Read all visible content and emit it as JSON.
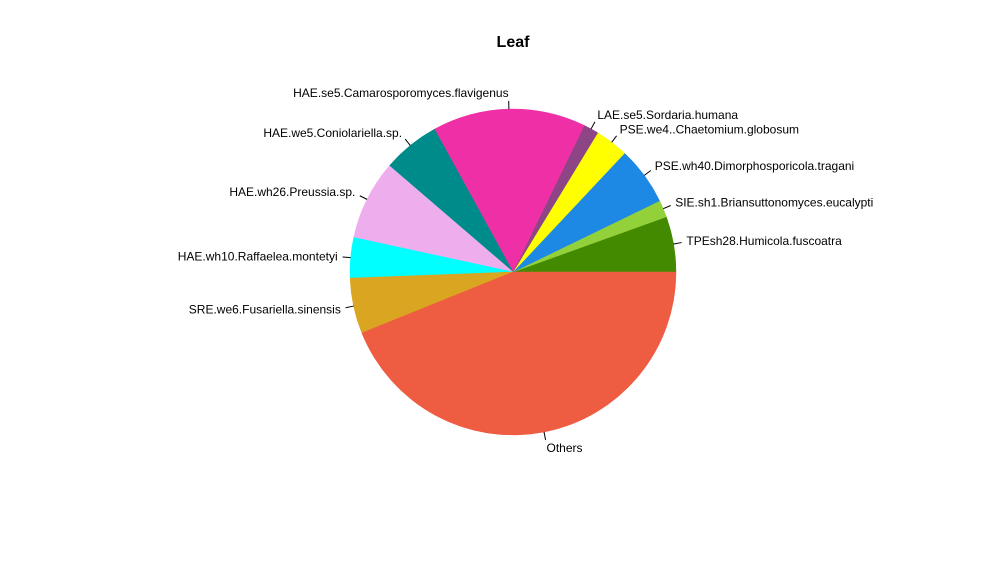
{
  "chart_data": {
    "type": "pie",
    "title": "Leaf",
    "start_angle_deg": 0,
    "direction": "counterclockwise",
    "slices": [
      {
        "label": "TPEsh28.Humicola.fuscoatra",
        "value": 5.5,
        "color": "#438A00"
      },
      {
        "label": "SIE.sh1.Briansuttonomyces.eucalypti",
        "value": 1.7,
        "color": "#93D13B"
      },
      {
        "label": "PSE.wh40.Dimorphosporicola.tragani",
        "value": 5.8,
        "color": "#1E88E5"
      },
      {
        "label": "PSE.we4..Chaetomium.globosum",
        "value": 3.3,
        "color": "#FFFF00"
      },
      {
        "label": "LAE.se5.Sordaria.humana",
        "value": 1.5,
        "color": "#8E4585"
      },
      {
        "label": "HAE.se5.Camarosporomyces.flavigenus",
        "value": 15.2,
        "color": "#EE2FA6"
      },
      {
        "label": "HAE.we5.Coniolariella.sp.",
        "value": 5.7,
        "color": "#008B8B"
      },
      {
        "label": "HAE.wh26.Preussia.sp.",
        "value": 7.9,
        "color": "#EEAEEE"
      },
      {
        "label": "HAE.wh10.Raffaelea.montetyi",
        "value": 4.0,
        "color": "#00FFFF"
      },
      {
        "label": "SRE.we6.Fusariella.sinensis",
        "value": 5.5,
        "color": "#DAA520"
      },
      {
        "label": "Others",
        "value": 43.9,
        "color": "#EE5C42"
      }
    ]
  }
}
